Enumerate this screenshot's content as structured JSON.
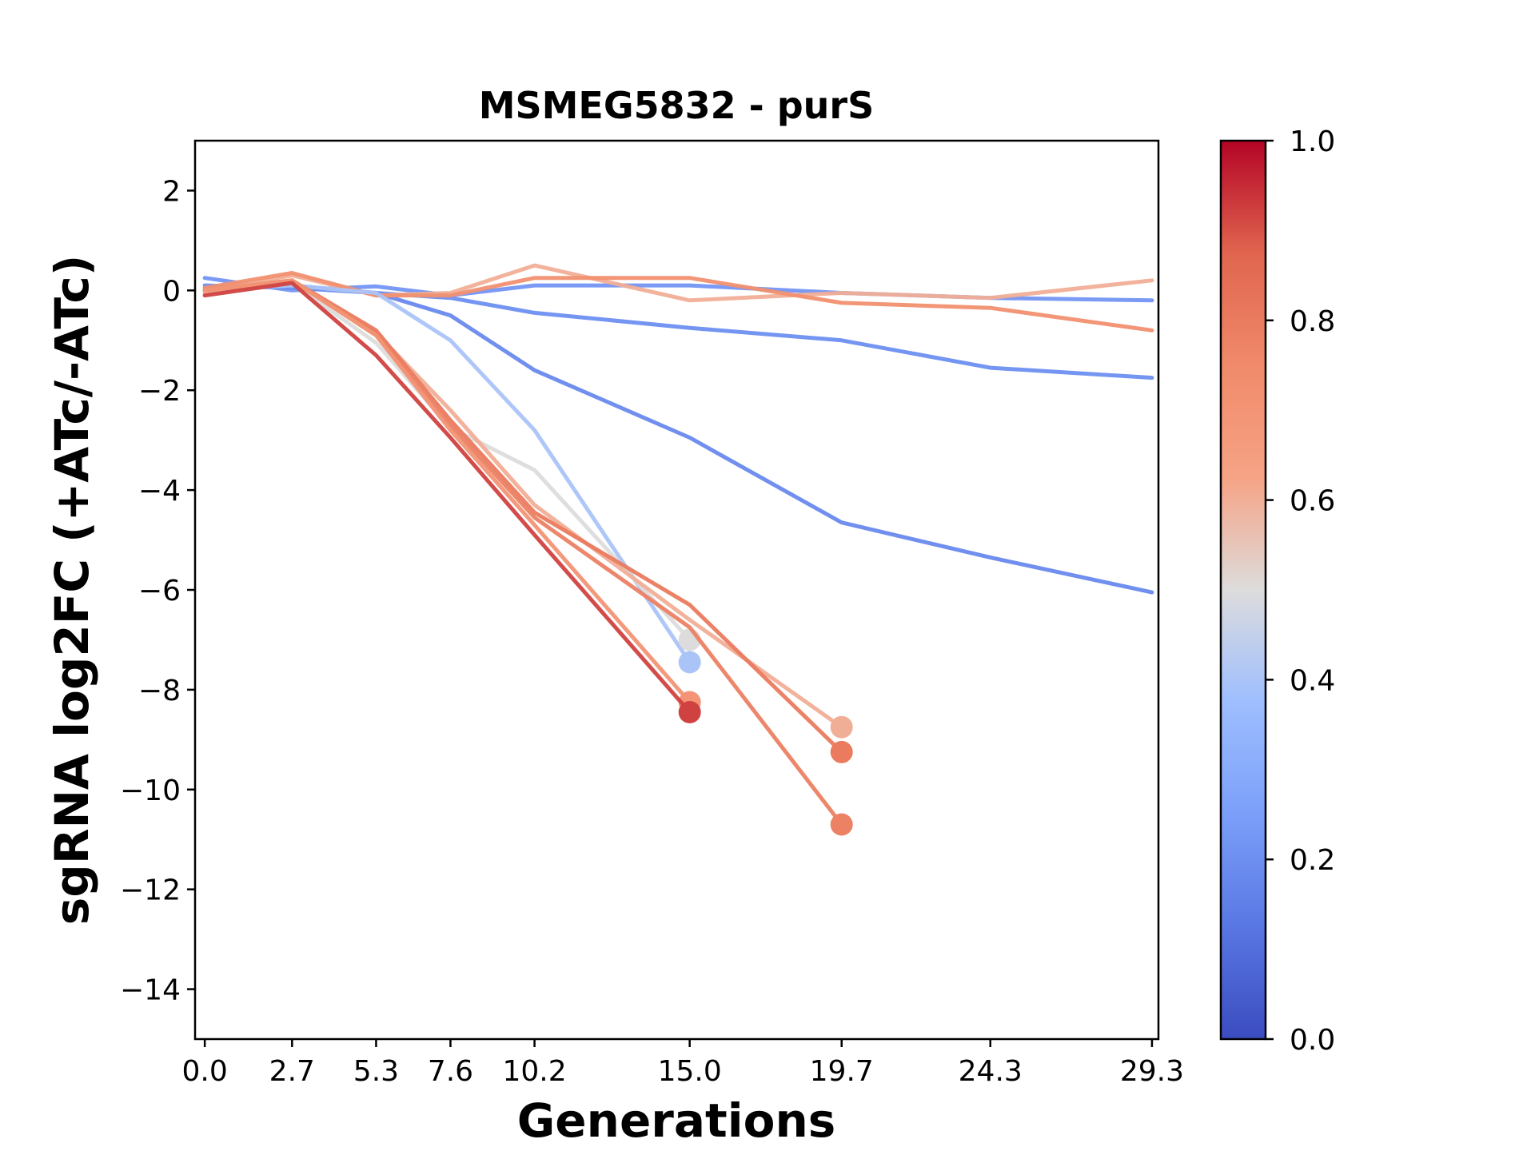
{
  "chart_data": {
    "type": "line",
    "title": "MSMEG5832 - purS",
    "xlabel": "Generations",
    "ylabel": "sgRNA log2FC (+ATc/-ATc)",
    "xlim": [
      -0.3,
      29.5
    ],
    "ylim": [
      -15,
      3
    ],
    "x_ticks": [
      0.0,
      2.7,
      5.3,
      7.6,
      10.2,
      15.0,
      19.7,
      24.3,
      29.3
    ],
    "x_tick_labels": [
      "0.0",
      "2.7",
      "5.3",
      "7.6",
      "10.2",
      "15.0",
      "19.7",
      "24.3",
      "29.3"
    ],
    "y_ticks": [
      2,
      0,
      -2,
      -4,
      -6,
      -8,
      -10,
      -12,
      -14
    ],
    "y_tick_labels": [
      "2",
      "0",
      "−2",
      "−4",
      "−6",
      "−8",
      "−10",
      "−12",
      "−14"
    ],
    "colorbar": {
      "range": [
        0.0,
        1.0
      ],
      "ticks": [
        0.0,
        0.2,
        0.4,
        0.6,
        0.8,
        1.0
      ],
      "tick_labels": [
        "0.0",
        "0.2",
        "0.4",
        "0.6",
        "0.8",
        "1.0"
      ],
      "colormap": "coolwarm"
    },
    "grid": false,
    "series": [
      {
        "color_value": 0.22,
        "x": [
          0.0,
          2.7,
          5.3,
          7.6,
          10.2,
          15.0,
          19.7,
          24.3,
          29.3
        ],
        "y": [
          0.25,
          0.0,
          0.08,
          -0.1,
          0.1,
          0.1,
          -0.05,
          -0.15,
          -0.2
        ],
        "end_marker": false
      },
      {
        "color_value": 0.2,
        "x": [
          0.0,
          2.7,
          5.3,
          7.6,
          10.2,
          15.0,
          19.7,
          24.3,
          29.3
        ],
        "y": [
          0.1,
          0.05,
          -0.05,
          -0.15,
          -0.45,
          -0.75,
          -1.0,
          -1.55,
          -1.75
        ],
        "end_marker": false
      },
      {
        "color_value": 0.18,
        "x": [
          0.0,
          2.7,
          5.3,
          7.6,
          10.2,
          15.0,
          19.7,
          24.3,
          29.3
        ],
        "y": [
          0.05,
          0.1,
          -0.05,
          -0.5,
          -1.6,
          -2.95,
          -4.65,
          -5.35,
          -6.05
        ],
        "end_marker": false
      },
      {
        "color_value": 0.6,
        "x": [
          0.0,
          2.7,
          5.3,
          7.6,
          10.2,
          15.0,
          19.7,
          24.3,
          29.3
        ],
        "y": [
          0.0,
          0.3,
          -0.1,
          -0.05,
          0.5,
          -0.2,
          -0.05,
          -0.15,
          0.2
        ],
        "end_marker": false
      },
      {
        "color_value": 0.72,
        "x": [
          0.0,
          2.7,
          5.3,
          7.6,
          10.2,
          15.0,
          19.7,
          24.3,
          29.3
        ],
        "y": [
          0.05,
          0.35,
          -0.1,
          -0.1,
          0.25,
          0.25,
          -0.25,
          -0.35,
          -0.8
        ],
        "end_marker": false
      },
      {
        "color_value": 0.4,
        "x": [
          0.0,
          2.7,
          5.3,
          7.6,
          10.2,
          15.0
        ],
        "y": [
          0.0,
          0.1,
          -0.05,
          -1.0,
          -2.8,
          -7.45
        ],
        "end_marker": true
      },
      {
        "color_value": 0.5,
        "x": [
          0.0,
          2.7,
          5.3,
          7.6,
          10.2,
          15.0
        ],
        "y": [
          0.0,
          0.15,
          -1.05,
          -2.75,
          -3.6,
          -7.0
        ],
        "end_marker": true
      },
      {
        "color_value": 0.6,
        "x": [
          0.0,
          2.7,
          5.3,
          7.6,
          10.2,
          15.0,
          19.7
        ],
        "y": [
          -0.05,
          0.2,
          -0.85,
          -2.4,
          -4.3,
          -6.6,
          -8.75
        ],
        "end_marker": true
      },
      {
        "color_value": 0.8,
        "x": [
          0.0,
          2.7,
          5.3,
          7.6,
          10.2,
          15.0,
          19.7
        ],
        "y": [
          0.0,
          0.2,
          -0.8,
          -2.6,
          -4.45,
          -6.3,
          -9.25
        ],
        "end_marker": true
      },
      {
        "color_value": 0.78,
        "x": [
          0.0,
          2.7,
          5.3,
          7.6,
          10.2,
          15.0,
          19.7
        ],
        "y": [
          0.0,
          0.2,
          -0.9,
          -2.7,
          -4.55,
          -6.75,
          -10.7
        ],
        "end_marker": true
      },
      {
        "color_value": 0.7,
        "x": [
          0.0,
          2.7,
          5.3,
          7.6,
          10.2,
          15.0
        ],
        "y": [
          0.0,
          0.2,
          -0.9,
          -2.8,
          -4.7,
          -8.25
        ],
        "end_marker": true
      },
      {
        "color_value": 0.92,
        "x": [
          0.0,
          2.7,
          5.3,
          7.6,
          10.2,
          15.0
        ],
        "y": [
          -0.1,
          0.15,
          -1.3,
          -2.95,
          -4.9,
          -8.45
        ],
        "end_marker": true
      }
    ]
  }
}
